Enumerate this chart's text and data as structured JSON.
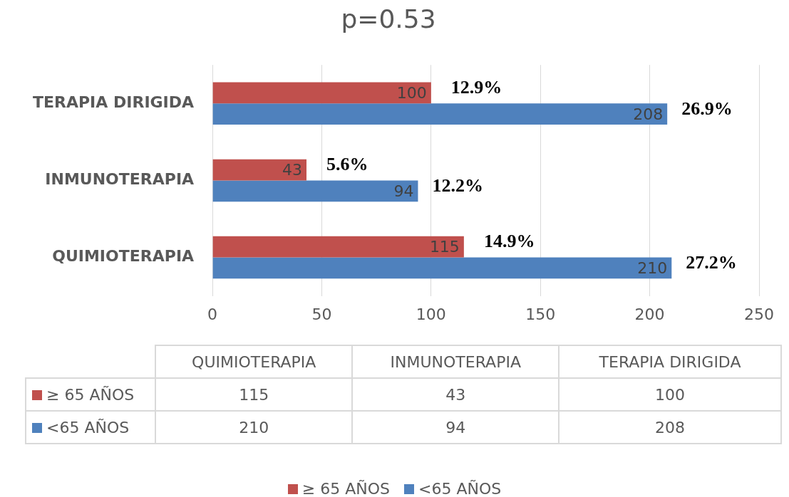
{
  "chart_data": {
    "type": "bar",
    "orientation": "horizontal",
    "title": "p=0.53",
    "categories": [
      "TERAPIA DIRIGIDA",
      "INMUNOTERAPIA",
      "QUIMIOTERAPIA"
    ],
    "series": [
      {
        "name": "≥ 65 AÑOS",
        "color": "#c0504d",
        "values": [
          100,
          43,
          115
        ]
      },
      {
        "name": "<65 AÑOS",
        "color": "#4f81bd",
        "values": [
          208,
          94,
          210
        ]
      }
    ],
    "xlim": [
      0,
      250
    ],
    "xticks": [
      0,
      50,
      100,
      150,
      200,
      250
    ],
    "grid": "x",
    "data_labels": true,
    "legend": "bottom",
    "annotations": [
      "12.9%",
      "26.9%",
      "5.6%",
      "12.2%",
      "14.9%",
      "27.2%",
      "115",
      "43",
      "100",
      "210",
      "94",
      "208"
    ]
  }
}
